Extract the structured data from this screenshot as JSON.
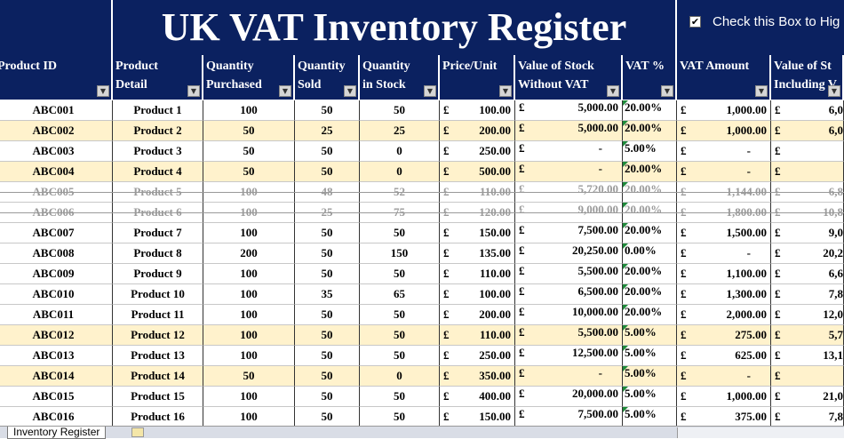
{
  "title": "UK VAT Inventory Register",
  "checkbox_label": "Check this Box to Hig",
  "currency_symbol": "£",
  "sheet_tab": "Inventory Register",
  "headers": [
    [
      "Product ID"
    ],
    [
      "Product",
      "Detail"
    ],
    [
      "Quantity",
      "Purchased"
    ],
    [
      "Quantity",
      "Sold"
    ],
    [
      "Quantity",
      "in Stock"
    ],
    [
      "Price/Unit"
    ],
    [
      "Value of Stock",
      "Without VAT"
    ],
    [
      "VAT %"
    ],
    [
      "VAT Amount"
    ],
    [
      "Value of St",
      "Including V"
    ]
  ],
  "rows": [
    {
      "cells": [
        "ABC001",
        "Product 1",
        "100",
        "50",
        "50",
        "100.00",
        "5,000.00",
        "20.00%",
        "1,000.00",
        "6,0"
      ]
    },
    {
      "cells": [
        "ABC002",
        "Product 2",
        "50",
        "25",
        "25",
        "200.00",
        "5,000.00",
        "20.00%",
        "1,000.00",
        "6,0"
      ],
      "highlight": true
    },
    {
      "cells": [
        "ABC003",
        "Product 3",
        "50",
        "50",
        "0",
        "250.00",
        "-",
        "5.00%",
        "-",
        null
      ]
    },
    {
      "cells": [
        "ABC004",
        "Product 4",
        "50",
        "50",
        "0",
        "500.00",
        "-",
        "20.00%",
        "-",
        null
      ],
      "highlight": true
    },
    {
      "cells": [
        "ABC005",
        "Product 5",
        "100",
        "48",
        "52",
        "110.00",
        "5,720.00",
        "20.00%",
        "1,144.00",
        "6,8"
      ],
      "struck": true
    },
    {
      "cells": [
        "ABC006",
        "Product 6",
        "100",
        "25",
        "75",
        "120.00",
        "9,000.00",
        "20.00%",
        "1,800.00",
        "10,8"
      ],
      "struck": true
    },
    {
      "cells": [
        "ABC007",
        "Product 7",
        "100",
        "50",
        "50",
        "150.00",
        "7,500.00",
        "20.00%",
        "1,500.00",
        "9,0"
      ]
    },
    {
      "cells": [
        "ABC008",
        "Product 8",
        "200",
        "50",
        "150",
        "135.00",
        "20,250.00",
        "0.00%",
        "-",
        "20,2"
      ]
    },
    {
      "cells": [
        "ABC009",
        "Product 9",
        "100",
        "50",
        "50",
        "110.00",
        "5,500.00",
        "20.00%",
        "1,100.00",
        "6,6"
      ]
    },
    {
      "cells": [
        "ABC010",
        "Product 10",
        "100",
        "35",
        "65",
        "100.00",
        "6,500.00",
        "20.00%",
        "1,300.00",
        "7,8"
      ]
    },
    {
      "cells": [
        "ABC011",
        "Product 11",
        "100",
        "50",
        "50",
        "200.00",
        "10,000.00",
        "20.00%",
        "2,000.00",
        "12,0"
      ]
    },
    {
      "cells": [
        "ABC012",
        "Product 12",
        "100",
        "50",
        "50",
        "110.00",
        "5,500.00",
        "5.00%",
        "275.00",
        "5,7"
      ],
      "highlight": true
    },
    {
      "cells": [
        "ABC013",
        "Product 13",
        "100",
        "50",
        "50",
        "250.00",
        "12,500.00",
        "5.00%",
        "625.00",
        "13,1"
      ]
    },
    {
      "cells": [
        "ABC014",
        "Product 14",
        "50",
        "50",
        "0",
        "350.00",
        "-",
        "5.00%",
        "-",
        null
      ],
      "highlight": true
    },
    {
      "cells": [
        "ABC015",
        "Product 15",
        "100",
        "50",
        "50",
        "400.00",
        "20,000.00",
        "5.00%",
        "1,000.00",
        "21,0"
      ]
    },
    {
      "cells": [
        "ABC016",
        "Product 16",
        "100",
        "50",
        "50",
        "150.00",
        "7,500.00",
        "5.00%",
        "375.00",
        "7,8"
      ]
    }
  ]
}
